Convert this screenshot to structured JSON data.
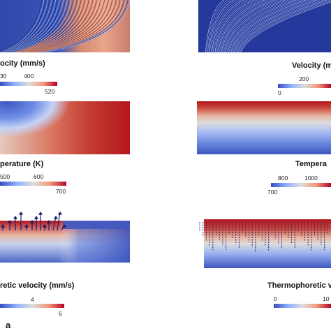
{
  "left": {
    "velocity": {
      "label": "ocity (mm/s)",
      "ticks": {
        "t1": "30",
        "t2": "400",
        "max": "520"
      }
    },
    "temperature": {
      "label": "perature (K)",
      "ticks": {
        "t1": "500",
        "t2": "600",
        "max": "700"
      }
    },
    "thermo": {
      "label": "retic velocity (mm/s)",
      "ticks": {
        "t1": "4",
        "max": "6"
      }
    },
    "letter": "a"
  },
  "right": {
    "velocity": {
      "label": "Velocity (m",
      "ticks": {
        "min": "0",
        "t1": "200"
      }
    },
    "temperature": {
      "label": "Tempera",
      "ticks": {
        "t1": "800",
        "t2": "1000",
        "min": "700"
      }
    },
    "thermo": {
      "label": "Thermophoretic v",
      "ticks": {
        "min": "0",
        "t1": "10"
      }
    }
  }
}
